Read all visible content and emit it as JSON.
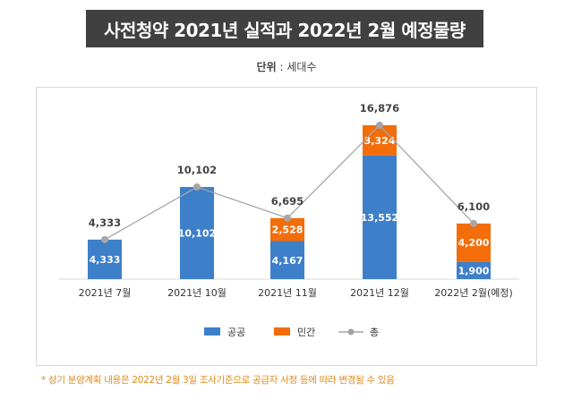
{
  "title": "사전청약 2021년 실적과 2022년 2월 예정물량",
  "unit": {
    "label": "단위",
    "sep": " : ",
    "value": "세대수"
  },
  "footnote": "* 상기 분양계획 내용은 2022년 2월 3일 조사기준으로 공급자 사정 등에 따라 변경될 수 있음",
  "chart_data": {
    "type": "bar",
    "stacked": true,
    "categories": [
      "2021년 7월",
      "2021년 10월",
      "2021년 11월",
      "2021년 12월",
      "2022년 2월(예정)"
    ],
    "series": [
      {
        "name": "공공",
        "type": "bar",
        "color": "#3d7fc9",
        "values": [
          4333,
          10102,
          4167,
          13552,
          1900
        ],
        "labels": [
          "4,333",
          "10,102",
          "4,167",
          "13,552",
          "1,900"
        ]
      },
      {
        "name": "민간",
        "type": "bar",
        "color": "#f36d0a",
        "values": [
          0,
          0,
          2528,
          3324,
          4200
        ],
        "labels": [
          "",
          "",
          "2,528",
          "3,324",
          "4,200"
        ]
      },
      {
        "name": "총",
        "type": "line",
        "color": "#a6a6a6",
        "values": [
          4333,
          10102,
          6695,
          16876,
          6100
        ],
        "labels": [
          "4,333",
          "10,102",
          "6,695",
          "16,876",
          "6,100"
        ]
      }
    ],
    "legend": {
      "position": "bottom"
    },
    "grid": false
  }
}
